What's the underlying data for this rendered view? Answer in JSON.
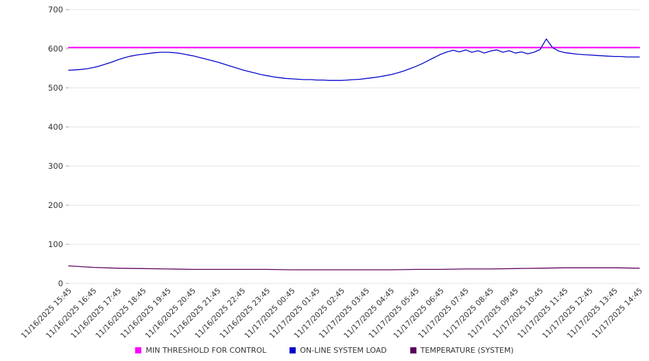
{
  "chart_data": {
    "type": "line",
    "title": "",
    "xlabel": "",
    "ylabel": "",
    "ylim": [
      0,
      700
    ],
    "y_ticks": [
      0,
      100,
      200,
      300,
      400,
      500,
      600,
      700
    ],
    "x_range_hours": [
      0,
      23
    ],
    "grid": "horizontal",
    "legend_position": "bottom",
    "colors": {
      "background": "#ffffff",
      "grid": "#e0e0e0",
      "tick_mark": "#999999",
      "tick_text": "#333333",
      "threshold": "#ff00ff",
      "load": "#0000cc",
      "temperature": "#5c005c"
    },
    "x_tick_labels": [
      "11/16/2025 15:45",
      "11/16/2025 16:45",
      "11/16/2025 17:45",
      "11/16/2025 18:45",
      "11/16/2025 19:45",
      "11/16/2025 20:45",
      "11/16/2025 21:45",
      "11/16/2025 22:45",
      "11/16/2025 23:45",
      "11/17/2025 00:45",
      "11/17/2025 01:45",
      "11/17/2025 02:45",
      "11/17/2025 03:45",
      "11/17/2025 04:45",
      "11/17/2025 05:45",
      "11/17/2025 06:45",
      "11/17/2025 07:45",
      "11/17/2025 08:45",
      "11/17/2025 09:45",
      "11/17/2025 10:45",
      "11/17/2025 11:45",
      "11/17/2025 12:45",
      "11/17/2025 13:45",
      "11/17/2025 14:45"
    ],
    "series": [
      {
        "name": "MIN THRESHOLD FOR CONTROL",
        "color": "#ff00ff",
        "stroke_width": 2,
        "x_start": 0,
        "x_step": 23,
        "values": [
          603,
          603
        ]
      },
      {
        "name": "ON-LINE SYSTEM LOAD",
        "color": "#0000cc",
        "stroke_width": 1.3,
        "x_start": 0,
        "x_step": 0.25,
        "values": [
          545,
          546,
          547,
          549,
          552,
          556,
          561,
          566,
          572,
          577,
          581,
          584,
          586,
          588,
          590,
          591,
          591,
          590,
          588,
          585,
          582,
          578,
          574,
          570,
          566,
          561,
          556,
          551,
          546,
          542,
          538,
          534,
          531,
          528,
          526,
          524,
          523,
          522,
          521,
          521,
          520,
          520,
          519,
          519,
          519,
          520,
          521,
          522,
          524,
          526,
          528,
          531,
          534,
          538,
          543,
          549,
          555,
          562,
          570,
          578,
          586,
          592,
          596,
          592,
          597,
          591,
          595,
          589,
          594,
          597,
          591,
          595,
          589,
          592,
          587,
          591,
          598,
          625,
          603,
          594,
          590,
          588,
          586,
          585,
          584,
          583,
          582,
          581,
          580,
          580,
          579,
          579,
          579
        ]
      },
      {
        "name": "TEMPERATURE (SYSTEM)",
        "color": "#5c005c",
        "stroke_width": 1.3,
        "x_start": 0,
        "x_step": 1,
        "values": [
          45,
          41,
          39,
          38,
          37,
          36,
          36,
          36,
          36,
          35,
          35,
          35,
          35,
          35,
          36,
          36,
          37,
          37,
          38,
          39,
          40,
          40,
          40,
          39
        ]
      }
    ]
  }
}
